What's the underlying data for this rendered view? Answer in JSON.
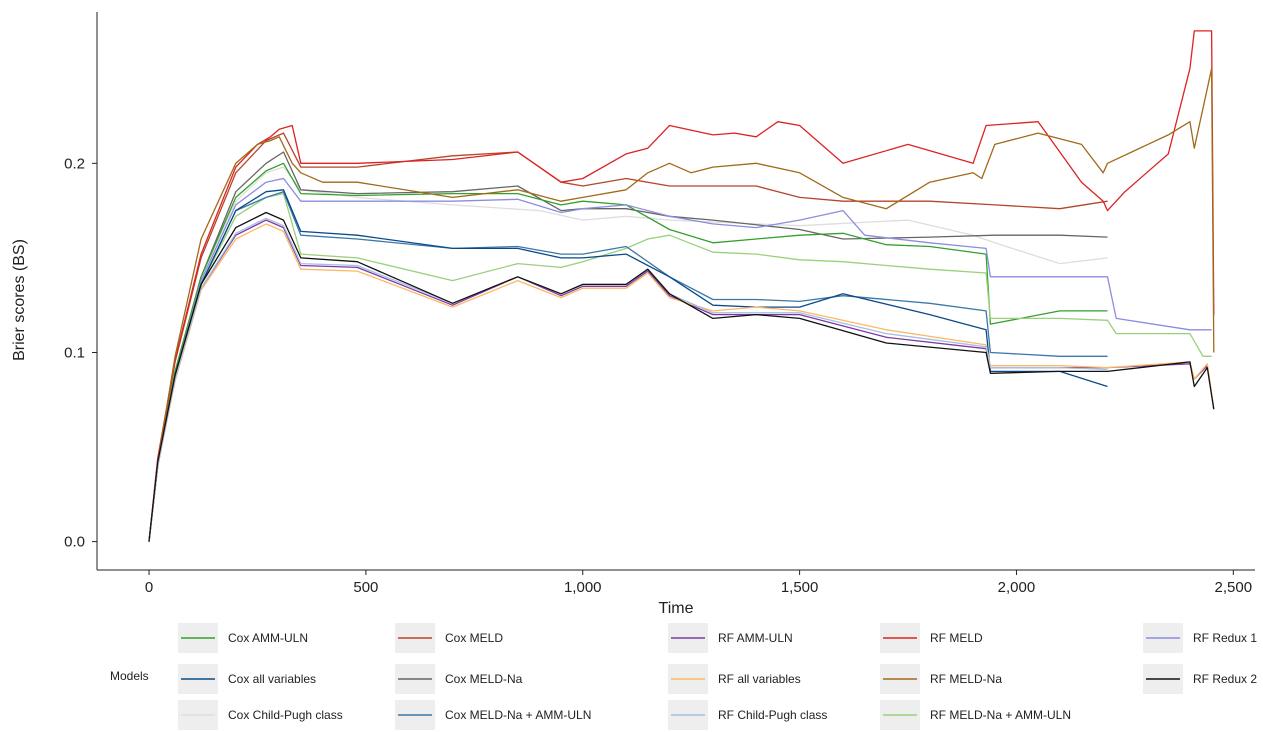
{
  "chart_data": {
    "type": "line",
    "title": "",
    "xlabel": "Time",
    "ylabel": "Brier scores (BS)",
    "xlim": [
      -120,
      2550
    ],
    "ylim": [
      -0.015,
      0.28
    ],
    "xticks": [
      0,
      500,
      1000,
      1500,
      2000,
      2500
    ],
    "xtick_labels": [
      "0",
      "500",
      "1,000",
      "1,500",
      "2,000",
      "2,500"
    ],
    "yticks": [
      0.0,
      0.1,
      0.2
    ],
    "ytick_labels": [
      "0.0",
      "0.1",
      "0.2"
    ],
    "grid": false,
    "legend": {
      "title": "Models",
      "placement": "bottom",
      "columns": [
        [
          "Cox AMM-ULN",
          "Cox all variables",
          "Cox Child-Pugh class"
        ],
        [
          "Cox MELD",
          "Cox MELD-Na",
          "Cox MELD-Na + AMM-ULN"
        ],
        [
          "RF AMM-ULN",
          "RF all variables",
          "RF Child-Pugh class"
        ],
        [
          "RF MELD",
          "RF MELD-Na",
          "RF MELD-Na + AMM-ULN"
        ],
        [
          "RF Redux 1",
          "RF Redux 2"
        ]
      ]
    },
    "series": [
      {
        "name": "Cox Child-Pugh class",
        "color": "#dddddd",
        "x": [
          0,
          20,
          60,
          120,
          200,
          270,
          310,
          350,
          480,
          700,
          900,
          1000,
          1100,
          1200,
          1300,
          1500,
          1750,
          1900,
          1950,
          2100,
          2210
        ],
        "y": [
          0,
          0.04,
          0.09,
          0.14,
          0.18,
          0.195,
          0.198,
          0.186,
          0.182,
          0.178,
          0.175,
          0.17,
          0.172,
          0.17,
          0.169,
          0.167,
          0.17,
          0.162,
          0.158,
          0.147,
          0.15
        ]
      },
      {
        "name": "Cox MELD-Na",
        "color": "#666666",
        "x": [
          0,
          20,
          60,
          120,
          200,
          270,
          310,
          350,
          480,
          700,
          850,
          950,
          1000,
          1100,
          1200,
          1300,
          1500,
          1600,
          1800,
          1950,
          2100,
          2210
        ],
        "y": [
          0,
          0.04,
          0.09,
          0.14,
          0.185,
          0.2,
          0.206,
          0.186,
          0.184,
          0.185,
          0.188,
          0.175,
          0.176,
          0.176,
          0.172,
          0.17,
          0.165,
          0.16,
          0.161,
          0.162,
          0.162,
          0.161
        ]
      },
      {
        "name": "Cox AMM-ULN",
        "color": "#33a02c",
        "x": [
          0,
          20,
          60,
          120,
          200,
          270,
          310,
          350,
          480,
          700,
          850,
          950,
          1000,
          1100,
          1200,
          1300,
          1400,
          1500,
          1600,
          1700,
          1800,
          1930,
          1940,
          2100,
          2210
        ],
        "y": [
          0,
          0.04,
          0.09,
          0.14,
          0.182,
          0.196,
          0.2,
          0.184,
          0.183,
          0.184,
          0.184,
          0.178,
          0.18,
          0.178,
          0.165,
          0.158,
          0.16,
          0.162,
          0.163,
          0.157,
          0.156,
          0.152,
          0.115,
          0.122,
          0.122
        ]
      },
      {
        "name": "RF Redux 1",
        "color": "#8c8ce0",
        "x": [
          0,
          20,
          60,
          120,
          200,
          270,
          310,
          350,
          480,
          700,
          850,
          950,
          1000,
          1100,
          1200,
          1300,
          1400,
          1500,
          1600,
          1650,
          1800,
          1930,
          1940,
          2100,
          2210,
          2230,
          2400,
          2450
        ],
        "y": [
          0,
          0.04,
          0.088,
          0.138,
          0.178,
          0.19,
          0.192,
          0.18,
          0.18,
          0.18,
          0.181,
          0.174,
          0.176,
          0.178,
          0.172,
          0.168,
          0.166,
          0.17,
          0.175,
          0.162,
          0.158,
          0.155,
          0.14,
          0.14,
          0.14,
          0.118,
          0.112,
          0.112
        ]
      },
      {
        "name": "Cox MELD",
        "color": "#b5452a",
        "x": [
          0,
          20,
          60,
          120,
          200,
          270,
          310,
          350,
          480,
          700,
          850,
          950,
          1000,
          1100,
          1200,
          1400,
          1500,
          1600,
          1800,
          1950,
          2100,
          2210
        ],
        "y": [
          0,
          0.042,
          0.095,
          0.15,
          0.195,
          0.212,
          0.216,
          0.198,
          0.198,
          0.204,
          0.206,
          0.19,
          0.188,
          0.192,
          0.188,
          0.188,
          0.182,
          0.18,
          0.18,
          0.178,
          0.176,
          0.18
        ]
      },
      {
        "name": "RF MELD",
        "color": "#dd2222",
        "x": [
          0,
          20,
          60,
          120,
          200,
          250,
          280,
          300,
          330,
          350,
          480,
          700,
          850,
          950,
          1000,
          1100,
          1150,
          1200,
          1300,
          1350,
          1400,
          1450,
          1500,
          1600,
          1750,
          1900,
          1930,
          2050,
          2150,
          2200,
          2210,
          2250,
          2350,
          2400,
          2410,
          2420,
          2450,
          2455
        ],
        "y": [
          0,
          0.044,
          0.096,
          0.152,
          0.198,
          0.21,
          0.214,
          0.218,
          0.22,
          0.2,
          0.2,
          0.202,
          0.206,
          0.19,
          0.192,
          0.205,
          0.208,
          0.22,
          0.215,
          0.216,
          0.214,
          0.222,
          0.22,
          0.2,
          0.21,
          0.2,
          0.22,
          0.222,
          0.19,
          0.18,
          0.175,
          0.185,
          0.205,
          0.25,
          0.27,
          0.27,
          0.27,
          0.12
        ]
      },
      {
        "name": "RF MELD-Na",
        "color": "#a06a1a",
        "x": [
          0,
          20,
          60,
          120,
          200,
          250,
          280,
          300,
          330,
          350,
          400,
          480,
          700,
          850,
          950,
          1000,
          1100,
          1150,
          1200,
          1250,
          1300,
          1400,
          1500,
          1600,
          1700,
          1800,
          1900,
          1920,
          1950,
          2050,
          2150,
          2200,
          2210,
          2350,
          2400,
          2410,
          2450,
          2455
        ],
        "y": [
          0,
          0.042,
          0.098,
          0.16,
          0.2,
          0.21,
          0.212,
          0.214,
          0.2,
          0.195,
          0.19,
          0.19,
          0.182,
          0.186,
          0.18,
          0.182,
          0.186,
          0.195,
          0.2,
          0.195,
          0.198,
          0.2,
          0.195,
          0.182,
          0.176,
          0.19,
          0.195,
          0.192,
          0.21,
          0.216,
          0.21,
          0.195,
          0.2,
          0.215,
          0.222,
          0.208,
          0.25,
          0.1
        ]
      },
      {
        "name": "RF MELD-Na + AMM-ULN",
        "color": "#99d07a",
        "x": [
          0,
          20,
          60,
          120,
          200,
          270,
          310,
          350,
          480,
          700,
          850,
          950,
          1000,
          1100,
          1150,
          1200,
          1300,
          1400,
          1500,
          1600,
          1700,
          1800,
          1930,
          1940,
          2100,
          2210,
          2230,
          2400,
          2430,
          2450
        ],
        "y": [
          0,
          0.04,
          0.088,
          0.136,
          0.172,
          0.182,
          0.184,
          0.152,
          0.15,
          0.138,
          0.147,
          0.145,
          0.148,
          0.155,
          0.16,
          0.162,
          0.153,
          0.152,
          0.149,
          0.148,
          0.146,
          0.144,
          0.142,
          0.118,
          0.118,
          0.117,
          0.11,
          0.11,
          0.098,
          0.098
        ]
      },
      {
        "name": "Cox MELD-Na + AMM-ULN",
        "color": "#3a78a8",
        "x": [
          0,
          20,
          60,
          120,
          200,
          270,
          310,
          350,
          480,
          700,
          850,
          950,
          1000,
          1100,
          1200,
          1300,
          1400,
          1500,
          1600,
          1800,
          1930,
          1940,
          2100,
          2210
        ],
        "y": [
          0,
          0.04,
          0.088,
          0.136,
          0.175,
          0.182,
          0.185,
          0.162,
          0.16,
          0.155,
          0.156,
          0.152,
          0.152,
          0.156,
          0.14,
          0.128,
          0.128,
          0.127,
          0.13,
          0.126,
          0.122,
          0.1,
          0.098,
          0.098
        ]
      },
      {
        "name": "Cox all variables",
        "color": "#0a4a8a",
        "x": [
          0,
          20,
          60,
          120,
          200,
          270,
          310,
          350,
          480,
          700,
          850,
          950,
          1000,
          1100,
          1200,
          1300,
          1400,
          1500,
          1600,
          1800,
          1930,
          1940,
          2100,
          2210
        ],
        "y": [
          0,
          0.04,
          0.088,
          0.136,
          0.175,
          0.185,
          0.186,
          0.164,
          0.162,
          0.155,
          0.155,
          0.15,
          0.15,
          0.152,
          0.14,
          0.125,
          0.124,
          0.124,
          0.131,
          0.12,
          0.112,
          0.09,
          0.09,
          0.082
        ]
      },
      {
        "name": "RF AMM-ULN",
        "color": "#7a3aa8",
        "x": [
          0,
          20,
          60,
          120,
          200,
          270,
          310,
          350,
          480,
          700,
          850,
          950,
          1000,
          1100,
          1150,
          1200,
          1300,
          1400,
          1500,
          1700,
          1930,
          1940,
          2100,
          2210,
          2400,
          2410,
          2440,
          2455
        ],
        "y": [
          0,
          0.04,
          0.086,
          0.134,
          0.162,
          0.17,
          0.166,
          0.146,
          0.145,
          0.125,
          0.14,
          0.13,
          0.135,
          0.135,
          0.143,
          0.13,
          0.12,
          0.12,
          0.12,
          0.108,
          0.102,
          0.092,
          0.092,
          0.092,
          0.094,
          0.086,
          0.093,
          0.07
        ]
      },
      {
        "name": "RF all variables",
        "color": "#fdb863",
        "x": [
          0,
          20,
          60,
          120,
          200,
          270,
          310,
          350,
          480,
          700,
          850,
          950,
          1000,
          1100,
          1150,
          1200,
          1300,
          1400,
          1500,
          1700,
          1930,
          1940,
          2100,
          2210,
          2400,
          2410,
          2440,
          2455
        ],
        "y": [
          0,
          0.04,
          0.085,
          0.133,
          0.16,
          0.168,
          0.164,
          0.144,
          0.143,
          0.124,
          0.138,
          0.129,
          0.134,
          0.134,
          0.142,
          0.129,
          0.122,
          0.124,
          0.122,
          0.112,
          0.104,
          0.093,
          0.093,
          0.092,
          0.095,
          0.086,
          0.094,
          0.07
        ]
      },
      {
        "name": "RF Child-Pugh class",
        "color": "#a6bfe3",
        "x": [
          0,
          20,
          60,
          120,
          200,
          270,
          310,
          350,
          480,
          700,
          850,
          950,
          1000,
          1100,
          1150,
          1200,
          1300,
          1400,
          1500,
          1700,
          1930,
          1940,
          2100,
          2210
        ],
        "y": [
          0,
          0.04,
          0.086,
          0.134,
          0.163,
          0.171,
          0.167,
          0.147,
          0.146,
          0.126,
          0.14,
          0.131,
          0.136,
          0.136,
          0.144,
          0.131,
          0.121,
          0.121,
          0.121,
          0.11,
          0.103,
          0.092,
          0.092,
          0.091
        ]
      },
      {
        "name": "RF Redux 2",
        "color": "#111111",
        "x": [
          0,
          20,
          60,
          120,
          200,
          270,
          310,
          350,
          480,
          700,
          850,
          950,
          1000,
          1100,
          1150,
          1200,
          1300,
          1400,
          1500,
          1700,
          1930,
          1940,
          2100,
          2210,
          2400,
          2410,
          2440,
          2455
        ],
        "y": [
          0,
          0.042,
          0.088,
          0.136,
          0.166,
          0.174,
          0.17,
          0.15,
          0.148,
          0.126,
          0.14,
          0.131,
          0.136,
          0.136,
          0.144,
          0.131,
          0.118,
          0.12,
          0.118,
          0.105,
          0.1,
          0.089,
          0.09,
          0.09,
          0.095,
          0.082,
          0.092,
          0.07
        ]
      }
    ]
  }
}
